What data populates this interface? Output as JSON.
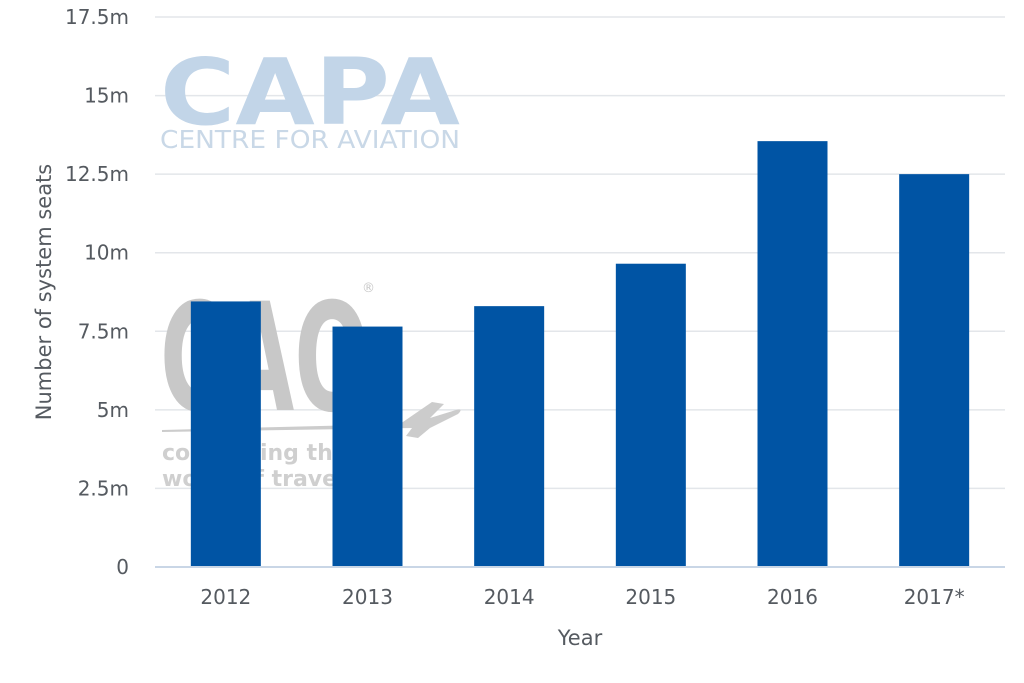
{
  "watermarks": {
    "capa_logo": "CAPA",
    "capa_tagline": "CENTRE FOR AVIATION",
    "cao_logo": "CAO",
    "cao_registered": "®",
    "cao_tagline_1": "connecting the",
    "cao_tagline_2": "world of travel"
  },
  "chart_data": {
    "type": "bar",
    "categories": [
      "2012",
      "2013",
      "2014",
      "2015",
      "2016",
      "2017*"
    ],
    "values": [
      8.45,
      7.65,
      8.3,
      9.65,
      13.55,
      12.5
    ],
    "xlabel": "Year",
    "ylabel": "Number of system seats",
    "ylim": [
      0,
      17.5
    ],
    "yticks": [
      0,
      2.5,
      5,
      7.5,
      10,
      12.5,
      15,
      17.5
    ],
    "ytick_labels": [
      "0",
      "2.5m",
      "5m",
      "7.5m",
      "10m",
      "12.5m",
      "15m",
      "17.5m"
    ],
    "bar_color": "#0054a4",
    "grid": true
  }
}
